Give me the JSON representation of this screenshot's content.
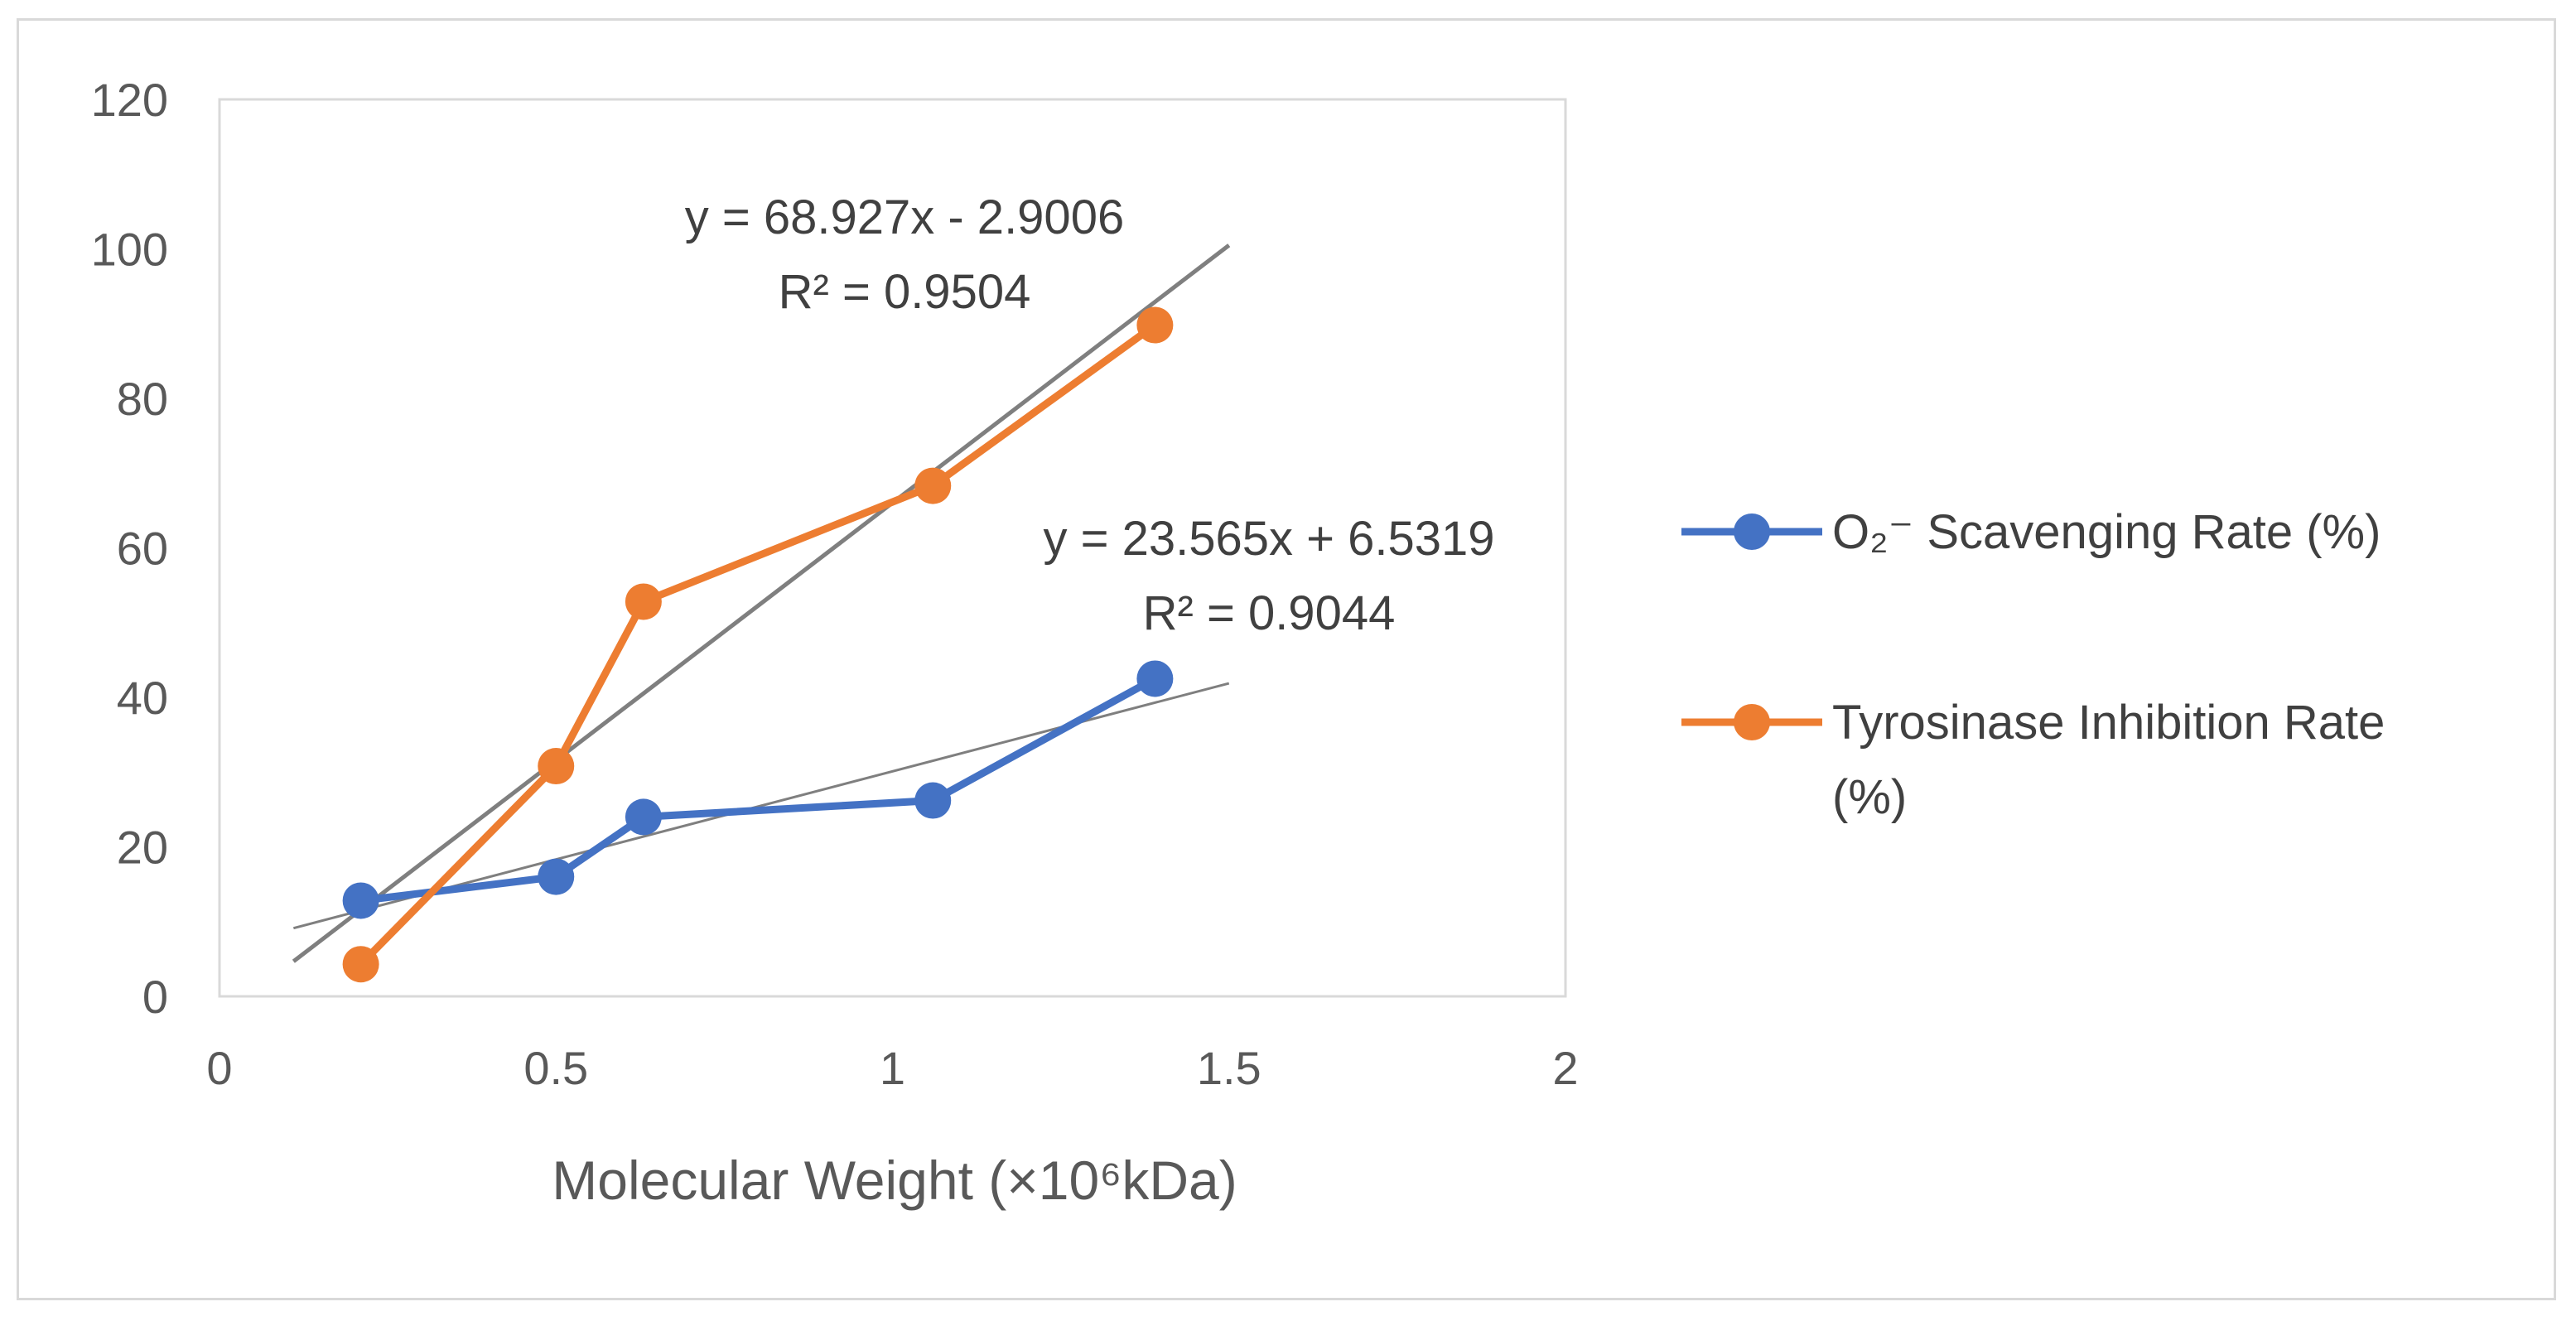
{
  "chart_data": {
    "type": "scatter",
    "title": "",
    "xlabel": "Molecular Weight (×10⁶kDa)",
    "ylabel": "",
    "xlim": [
      0,
      2
    ],
    "ylim": [
      0,
      120
    ],
    "x_ticks": [
      "0",
      "0.5",
      "1",
      "1.5",
      "2"
    ],
    "y_ticks": [
      "0",
      "20",
      "40",
      "60",
      "80",
      "100",
      "120"
    ],
    "legend_position": "right",
    "series": [
      {
        "name": "O₂⁻ Scavenging Rate (%)",
        "color": "#4472c4",
        "x": [
          0.21,
          0.5,
          0.63,
          1.06,
          1.39
        ],
        "y": [
          12.8,
          16.0,
          24.0,
          26.2,
          42.5
        ],
        "trendline": {
          "equation": "y = 23.565x + 6.5319",
          "r2": "R² = 0.9044",
          "slope": 23.565,
          "intercept": 6.5319,
          "x_range": [
            0.11,
            1.5
          ],
          "color": "#7f7f7f"
        }
      },
      {
        "name": "Tyrosinase Inhibition Rate (%)",
        "name_lines": [
          "Tyrosinase Inhibition Rate",
          "(%)"
        ],
        "color": "#ed7d31",
        "x": [
          0.21,
          0.5,
          0.63,
          1.06,
          1.39
        ],
        "y": [
          4.3,
          30.8,
          52.8,
          68.3,
          89.8
        ],
        "trendline": {
          "equation": "y = 68.927x - 2.9006",
          "r2": "R² = 0.9504",
          "slope": 68.927,
          "intercept": -2.9006,
          "x_range": [
            0.11,
            1.5
          ],
          "color": "#7f7f7f"
        }
      }
    ]
  }
}
